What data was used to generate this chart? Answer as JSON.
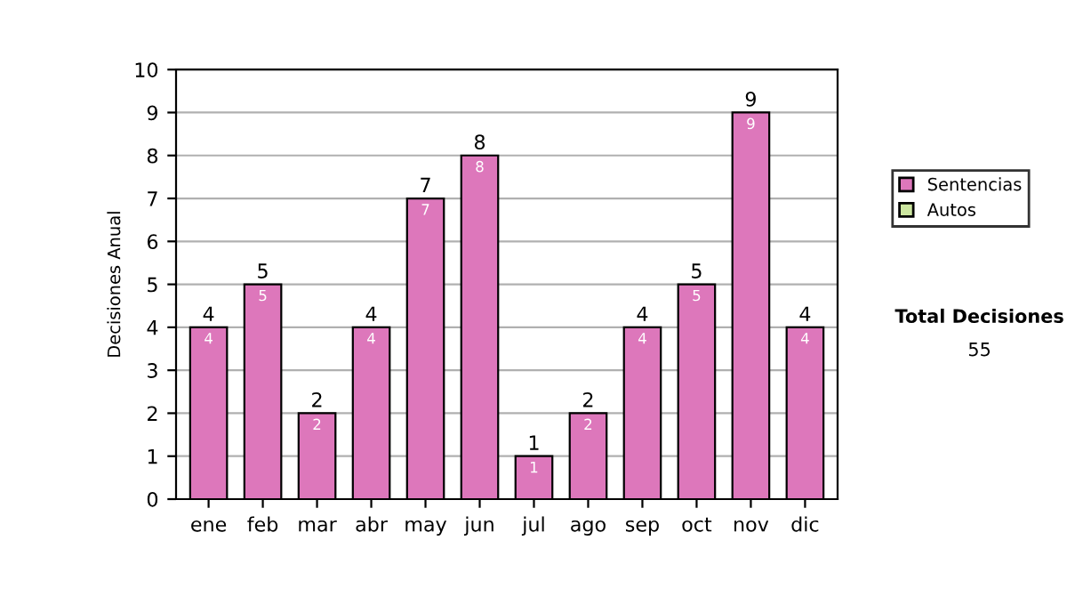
{
  "chart_data": {
    "type": "bar",
    "stacked": true,
    "ylabel": "Decisiones Anual",
    "categories": [
      "ene",
      "feb",
      "mar",
      "abr",
      "may",
      "jun",
      "jul",
      "ago",
      "sep",
      "oct",
      "nov",
      "dic"
    ],
    "series": [
      {
        "name": "Sentencias",
        "color": "#dd77bb",
        "values": [
          4,
          5,
          2,
          4,
          7,
          8,
          1,
          2,
          4,
          5,
          9,
          4
        ],
        "value_labels": [
          "4",
          "5",
          "2",
          "4",
          "7",
          "8",
          "1",
          "2",
          "4",
          "5",
          "9",
          "4"
        ]
      },
      {
        "name": "Autos",
        "color": "#cce6a0",
        "values": [
          null,
          null,
          null,
          null,
          null,
          null,
          null,
          null,
          null,
          null,
          null,
          null
        ]
      }
    ],
    "totals": [
      "4",
      "5",
      "2",
      "4",
      "7",
      "8",
      "1",
      "2",
      "4",
      "5",
      "9",
      "4"
    ],
    "ylim": [
      0,
      10
    ],
    "yticks": [
      0,
      1,
      2,
      3,
      4,
      5,
      6,
      7,
      8,
      9,
      10
    ],
    "grid": "y",
    "legend": "right",
    "annotations": [
      "Total Decisiones",
      "55"
    ]
  }
}
